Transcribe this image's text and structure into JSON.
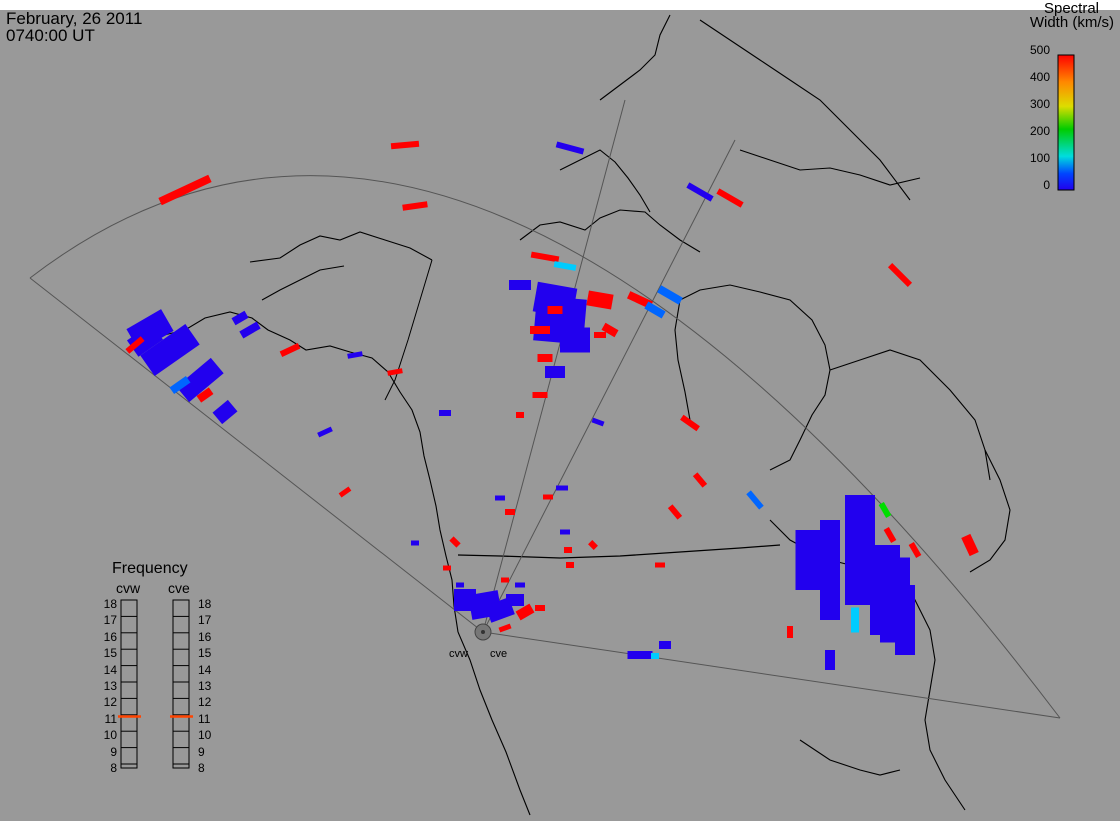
{
  "header": {
    "date": "February, 26 2011",
    "time": "0740:00 UT"
  },
  "colorbar": {
    "title_line1": "Spectral",
    "title_line2": "Width (km/s)",
    "ticks": [
      "500",
      "400",
      "300",
      "200",
      "100",
      "0"
    ],
    "range": [
      0,
      500
    ],
    "colors": [
      "#ff0000",
      "#ff8800",
      "#dddd00",
      "#00cc00",
      "#00dddd",
      "#0044ff",
      "#2200ee"
    ]
  },
  "frequency_panel": {
    "title": "Frequency",
    "radars": [
      {
        "name": "cvw",
        "freq_mhz": 10.9
      },
      {
        "name": "cve",
        "freq_mhz": 10.9
      }
    ],
    "ticks": [
      "18",
      "17",
      "16",
      "15",
      "14",
      "13",
      "12",
      "11",
      "10",
      "9",
      "8"
    ],
    "range": [
      8,
      18
    ]
  },
  "radar_site": {
    "labels": [
      "cvw",
      "cve"
    ]
  },
  "colors": {
    "background": "#999999",
    "coast": "#000000",
    "fov": "#555555",
    "marker": "#ff4400"
  }
}
